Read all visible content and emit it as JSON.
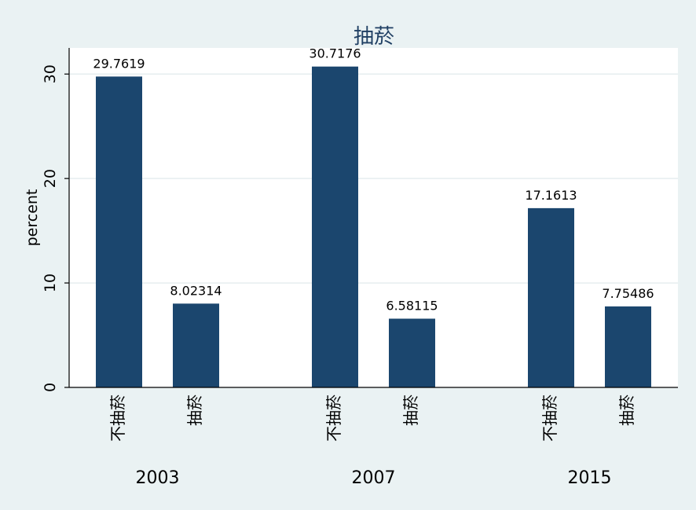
{
  "chart_data": {
    "type": "bar",
    "title": "抽菸",
    "ylabel": "percent",
    "ylim": [
      0,
      32.5
    ],
    "yticks": [
      0,
      10,
      20,
      30
    ],
    "grid": true,
    "groups": [
      {
        "label": "2003",
        "bars": [
          {
            "category": "不抽菸",
            "value": 29.7619,
            "label": "29.7619"
          },
          {
            "category": "抽菸",
            "value": 8.02314,
            "label": "8.02314"
          }
        ]
      },
      {
        "label": "2007",
        "bars": [
          {
            "category": "不抽菸",
            "value": 30.7176,
            "label": "30.7176"
          },
          {
            "category": "抽菸",
            "value": 6.58115,
            "label": "6.58115"
          }
        ]
      },
      {
        "label": "2015",
        "bars": [
          {
            "category": "不抽菸",
            "value": 17.1613,
            "label": "17.1613"
          },
          {
            "category": "抽菸",
            "value": 7.75486,
            "label": "7.75486"
          }
        ]
      }
    ]
  },
  "colors": {
    "background": "#eaf2f3",
    "plot_background": "#ffffff",
    "bar": "#1b466e",
    "title": "#1f3f63",
    "grid": "#e6eeef",
    "axis": "#000000"
  }
}
